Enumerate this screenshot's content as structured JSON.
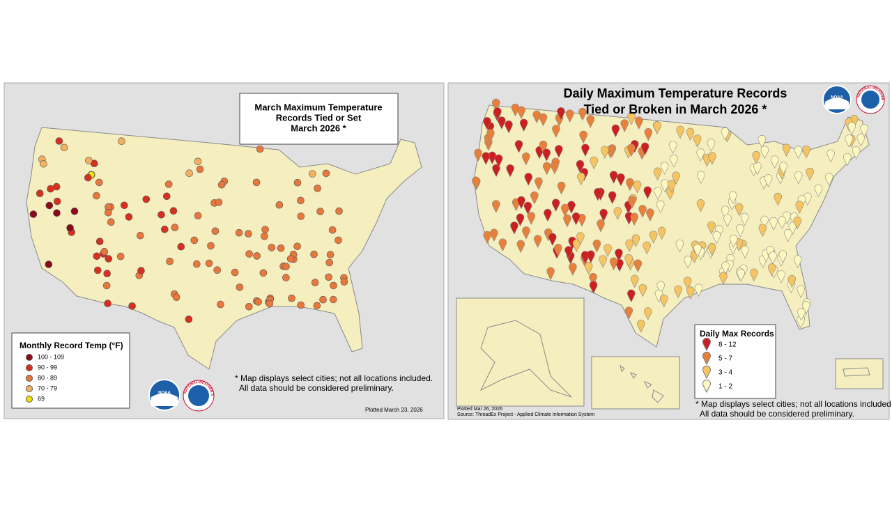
{
  "left_map": {
    "title_lines": [
      "March Maximum Temperature",
      "Records Tied or Set",
      "March 2026 *"
    ],
    "legend": {
      "title": "Monthly Record Temp (°F)",
      "items": [
        {
          "label": "100 - 109",
          "color": "#8b0a1a"
        },
        {
          "label": "90 - 99",
          "color": "#d7301f"
        },
        {
          "label": "80 - 89",
          "color": "#e8773c"
        },
        {
          "label": "70 - 79",
          "color": "#f4b061"
        },
        {
          "label": "69",
          "color": "#f0e000"
        }
      ]
    },
    "note_lines": [
      "* Map displays select cities; not all locations included.",
      "All data should be considered preliminary."
    ],
    "plotted": "Plotted March 23, 2026"
  },
  "right_map": {
    "title_lines": [
      "Daily Maximum Temperature Records",
      "Tied or Broken in March 2026 *"
    ],
    "legend": {
      "title": "Daily Max Records",
      "items": [
        {
          "label": "8 - 12",
          "color": "#cc1f1f"
        },
        {
          "label": "5 - 7",
          "color": "#e8803a"
        },
        {
          "label": "3 - 4",
          "color": "#f6c460"
        },
        {
          "label": "1 - 2",
          "color": "#fdf7c0"
        }
      ]
    },
    "note_lines": [
      "* Map displays select cities; not all locations included.",
      "All data should be considered preliminary."
    ],
    "plotted": "Plotted Mar 26, 2026",
    "source": "Source: ThreadEx Project - Applied Climate Information System"
  },
  "logos": {
    "noaa": "NOAA",
    "nws": "NATIONAL WEATHER SERVICE"
  }
}
